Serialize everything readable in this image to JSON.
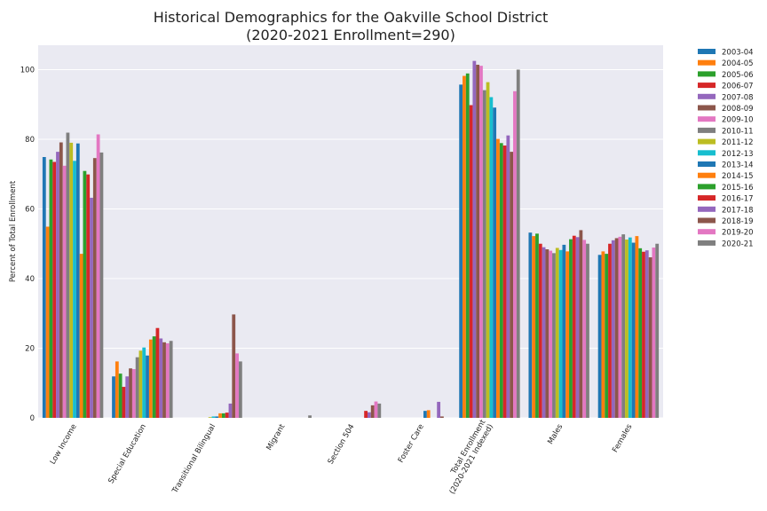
{
  "chart_data": {
    "type": "bar",
    "title": "Historical Demographics for the Oakville School District",
    "subtitle": "(2020-2021 Enrollment=290)",
    "ylabel": "Percent of Total Enrollment",
    "xlabel": "",
    "ylim": [
      0,
      107
    ],
    "yticks": [
      0,
      20,
      40,
      60,
      80,
      100
    ],
    "grid": true,
    "legend_position": "right-outside",
    "categories": [
      "Low Income",
      "Special Education",
      "Transitional Bilingual",
      "Migrant",
      "Section 504",
      "Foster Care",
      "Total Enrollment\n(2020-2021 Indexed)",
      "Males",
      "Females"
    ],
    "series": [
      {
        "name": "2003-04",
        "color": "#1f77b4",
        "values": [
          74.9,
          11.9,
          0,
          0,
          0,
          0,
          95.7,
          53.2,
          46.8
        ]
      },
      {
        "name": "2004-05",
        "color": "#ff7f0e",
        "values": [
          54.9,
          16.2,
          0,
          0,
          0,
          0,
          98.2,
          52.2,
          47.8
        ]
      },
      {
        "name": "2005-06",
        "color": "#2ca02c",
        "values": [
          74.2,
          12.7,
          0,
          0,
          0,
          0,
          98.9,
          52.9,
          47.1
        ]
      },
      {
        "name": "2006-07",
        "color": "#d62728",
        "values": [
          73.5,
          8.9,
          0,
          0,
          0,
          0,
          89.8,
          50.0,
          50.0
        ]
      },
      {
        "name": "2007-08",
        "color": "#9467bd",
        "values": [
          76.4,
          11.9,
          0,
          0,
          0,
          0,
          102.5,
          49.0,
          51.0
        ]
      },
      {
        "name": "2008-09",
        "color": "#8c564b",
        "values": [
          79.1,
          14.2,
          0,
          0,
          0,
          0,
          101.4,
          48.4,
          51.6
        ]
      },
      {
        "name": "2009-10",
        "color": "#e377c2",
        "values": [
          72.4,
          14.0,
          0,
          0,
          0,
          0,
          101.1,
          48.0,
          52.0
        ]
      },
      {
        "name": "2010-11",
        "color": "#7f7f7f",
        "values": [
          81.9,
          17.4,
          0,
          0,
          0,
          0,
          94.1,
          47.3,
          52.7
        ]
      },
      {
        "name": "2011-12",
        "color": "#bcbd22",
        "values": [
          79.0,
          19.3,
          0.2,
          0,
          0,
          0,
          96.4,
          48.8,
          51.2
        ]
      },
      {
        "name": "2012-13",
        "color": "#17becf",
        "values": [
          73.8,
          20.2,
          0.4,
          0,
          0,
          0,
          92.1,
          48.2,
          51.8
        ]
      },
      {
        "name": "2013-14",
        "color": "#1f77b4",
        "values": [
          78.8,
          17.9,
          0.4,
          0,
          0,
          2.0,
          89.1,
          49.7,
          50.3
        ]
      },
      {
        "name": "2014-15",
        "color": "#ff7f0e",
        "values": [
          47.1,
          22.5,
          1.3,
          0,
          0,
          2.2,
          80.1,
          47.8,
          52.2
        ]
      },
      {
        "name": "2015-16",
        "color": "#2ca02c",
        "values": [
          70.9,
          23.4,
          1.3,
          0,
          0,
          0,
          78.9,
          51.3,
          48.7
        ]
      },
      {
        "name": "2016-17",
        "color": "#d62728",
        "values": [
          69.9,
          25.8,
          1.5,
          0,
          2.0,
          0,
          78.2,
          52.3,
          47.7
        ]
      },
      {
        "name": "2017-18",
        "color": "#9467bd",
        "values": [
          63.2,
          22.8,
          4.1,
          0,
          1.6,
          4.6,
          81.1,
          51.9,
          48.1
        ]
      },
      {
        "name": "2018-19",
        "color": "#8c564b",
        "values": [
          74.6,
          21.7,
          29.7,
          0,
          3.6,
          0.4,
          76.4,
          53.9,
          46.1
        ]
      },
      {
        "name": "2019-20",
        "color": "#e377c2",
        "values": [
          81.4,
          21.4,
          18.5,
          0,
          4.7,
          0,
          93.8,
          51.1,
          48.9
        ]
      },
      {
        "name": "2020-21",
        "color": "#7f7f7f",
        "values": [
          76.2,
          22.1,
          16.2,
          0.7,
          4.1,
          0,
          100.0,
          50.0,
          50.0
        ]
      }
    ]
  }
}
